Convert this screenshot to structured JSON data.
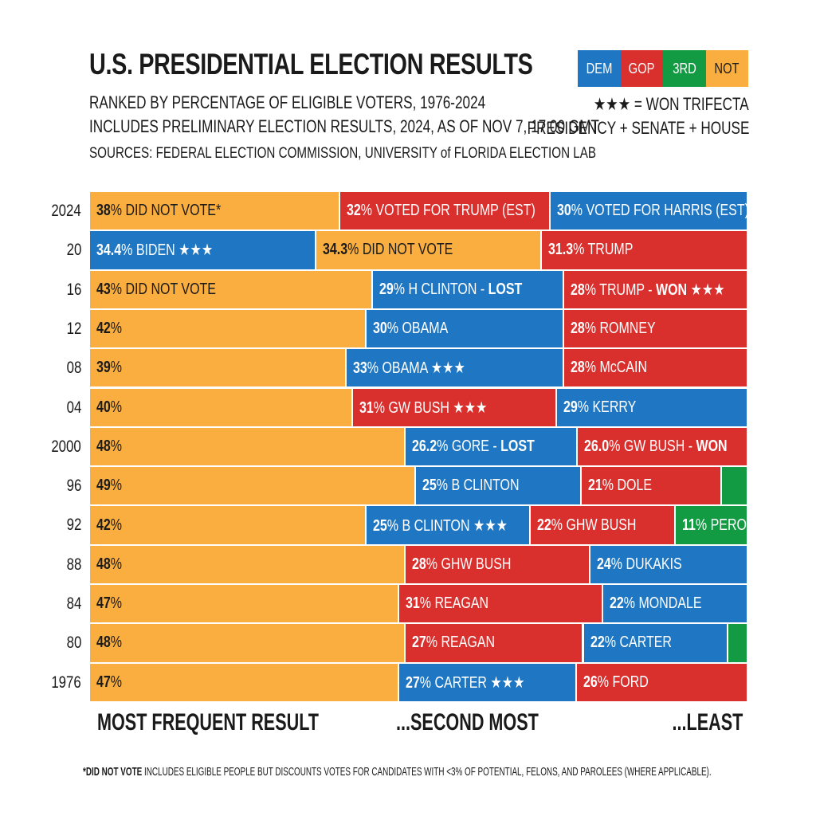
{
  "header": {
    "title": "U.S. PRESIDENTIAL ELECTION RESULTS",
    "subtitle1": "RANKED BY PERCENTAGE OF ELIGIBLE VOTERS, 1976-2024",
    "subtitle2": "INCLUDES PRELIMINARY ELECTION RESULTS, 2024, AS OF NOV 7, 17:00 GMT",
    "sources": "SOURCES: FEDERAL ELECTION COMMISSION, UNIVERSITY of FLORIDA ELECTION LAB"
  },
  "legend": {
    "items": [
      {
        "key": "DEM",
        "label": "DEM",
        "color": "#1f77c3"
      },
      {
        "key": "GOP",
        "label": "GOP",
        "color": "#d9302e"
      },
      {
        "key": "THIRD",
        "label": "3RD",
        "color": "#129b43"
      },
      {
        "key": "NOT",
        "label": "NOT",
        "color": "#f9ae3f"
      }
    ],
    "trifecta_line1": "★★★ = WON TRIFECTA",
    "trifecta_line2": "PRESIDENCY + SENATE + HOUSE"
  },
  "footer": {
    "most": "MOST FREQUENT RESULT",
    "second": "...SECOND MOST",
    "least": "...LEAST",
    "note_bold": "*DID NOT VOTE",
    "note_text": " INCLUDES ELIGIBLE PEOPLE BUT DISCOUNTS VOTES FOR CANDIDATES WITH <3% OF POTENTIAL, FELONS, AND PAROLEES (WHERE APPLICABLE)."
  },
  "chart_data": {
    "type": "bar",
    "orientation": "horizontal-stacked-100",
    "title": "U.S. PRESIDENTIAL ELECTION RESULTS",
    "categories": [
      "2024",
      "20",
      "16",
      "12",
      "08",
      "04",
      "2000",
      "96",
      "92",
      "88",
      "84",
      "80",
      "1976"
    ],
    "rows": [
      {
        "year": "2024",
        "segments": [
          {
            "party": "NOT",
            "value": 38,
            "pct": "38",
            "text": "% DID NOT VOTE*"
          },
          {
            "party": "GOP",
            "value": 32,
            "pct": "32",
            "text": "% VOTED FOR TRUMP (EST)"
          },
          {
            "party": "DEM",
            "value": 30,
            "pct": "30",
            "text": "% VOTED FOR HARRIS (EST)"
          }
        ]
      },
      {
        "year": "20",
        "segments": [
          {
            "party": "DEM",
            "value": 34.4,
            "pct": "34.4",
            "text": "% BIDEN ★★★"
          },
          {
            "party": "NOT",
            "value": 34.3,
            "pct": "34.3",
            "text": "% DID NOT VOTE"
          },
          {
            "party": "GOP",
            "value": 31.3,
            "pct": "31.3",
            "text": "% TRUMP"
          }
        ]
      },
      {
        "year": "16",
        "segments": [
          {
            "party": "NOT",
            "value": 43,
            "pct": "43",
            "text": "% DID NOT VOTE"
          },
          {
            "party": "DEM",
            "value": 29,
            "pct": "29",
            "text": "% H CLINTON - ",
            "strong": "LOST"
          },
          {
            "party": "GOP",
            "value": 28,
            "pct": "28",
            "text": "% TRUMP - ",
            "strong": "WON",
            "tail": " ★★★"
          }
        ]
      },
      {
        "year": "12",
        "segments": [
          {
            "party": "NOT",
            "value": 42,
            "pct": "42",
            "text": "%"
          },
          {
            "party": "DEM",
            "value": 30,
            "pct": "30",
            "text": "% OBAMA"
          },
          {
            "party": "GOP",
            "value": 28,
            "pct": "28",
            "text": "% ROMNEY"
          }
        ]
      },
      {
        "year": "08",
        "segments": [
          {
            "party": "NOT",
            "value": 39,
            "pct": "39",
            "text": "%"
          },
          {
            "party": "DEM",
            "value": 33,
            "pct": "33",
            "text": "% OBAMA ★★★"
          },
          {
            "party": "GOP",
            "value": 28,
            "pct": "28",
            "text": "% McCAIN"
          }
        ]
      },
      {
        "year": "04",
        "segments": [
          {
            "party": "NOT",
            "value": 40,
            "pct": "40",
            "text": "%"
          },
          {
            "party": "GOP",
            "value": 31,
            "pct": "31",
            "text": "% GW BUSH ★★★"
          },
          {
            "party": "DEM",
            "value": 29,
            "pct": "29",
            "text": "% KERRY"
          }
        ]
      },
      {
        "year": "2000",
        "segments": [
          {
            "party": "NOT",
            "value": 48,
            "pct": "48",
            "text": "%"
          },
          {
            "party": "DEM",
            "value": 26.2,
            "pct": "26.2",
            "text": "% GORE - ",
            "strong": "LOST"
          },
          {
            "party": "GOP",
            "value": 26.0,
            "pct": "26.0",
            "text": "% GW BUSH - ",
            "strong": "WON"
          }
        ]
      },
      {
        "year": "96",
        "segments": [
          {
            "party": "NOT",
            "value": 49,
            "pct": "49",
            "text": "%"
          },
          {
            "party": "DEM",
            "value": 25,
            "pct": "25",
            "text": "% B CLINTON"
          },
          {
            "party": "GOP",
            "value": 21,
            "pct": "21",
            "text": "% DOLE"
          },
          {
            "party": "THIRD",
            "value": 4
          }
        ]
      },
      {
        "year": "92",
        "segments": [
          {
            "party": "NOT",
            "value": 42,
            "pct": "42",
            "text": "%"
          },
          {
            "party": "DEM",
            "value": 25,
            "pct": "25",
            "text": "% B CLINTON ★★★"
          },
          {
            "party": "GOP",
            "value": 22,
            "pct": "22",
            "text": "% GHW BUSH"
          },
          {
            "party": "THIRD",
            "value": 11,
            "pct": "11",
            "text": "% PEROT"
          }
        ]
      },
      {
        "year": "88",
        "segments": [
          {
            "party": "NOT",
            "value": 48,
            "pct": "48",
            "text": "%"
          },
          {
            "party": "GOP",
            "value": 28,
            "pct": "28",
            "text": "% GHW BUSH"
          },
          {
            "party": "DEM",
            "value": 24,
            "pct": "24",
            "text": "% DUKAKIS"
          }
        ]
      },
      {
        "year": "84",
        "segments": [
          {
            "party": "NOT",
            "value": 47,
            "pct": "47",
            "text": "%"
          },
          {
            "party": "GOP",
            "value": 31,
            "pct": "31",
            "text": "% REAGAN"
          },
          {
            "party": "DEM",
            "value": 22,
            "pct": "22",
            "text": "% MONDALE"
          }
        ]
      },
      {
        "year": "80",
        "segments": [
          {
            "party": "NOT",
            "value": 48,
            "pct": "48",
            "text": "%"
          },
          {
            "party": "GOP",
            "value": 27,
            "pct": "27",
            "text": "% REAGAN"
          },
          {
            "party": "DEM",
            "value": 22,
            "pct": "22",
            "text": "% CARTER"
          },
          {
            "party": "THIRD",
            "value": 3
          }
        ]
      },
      {
        "year": "1976",
        "segments": [
          {
            "party": "NOT",
            "value": 47,
            "pct": "47",
            "text": "%"
          },
          {
            "party": "DEM",
            "value": 27,
            "pct": "27",
            "text": "% CARTER ★★★"
          },
          {
            "party": "GOP",
            "value": 26,
            "pct": "26",
            "text": "% FORD"
          }
        ]
      }
    ]
  }
}
